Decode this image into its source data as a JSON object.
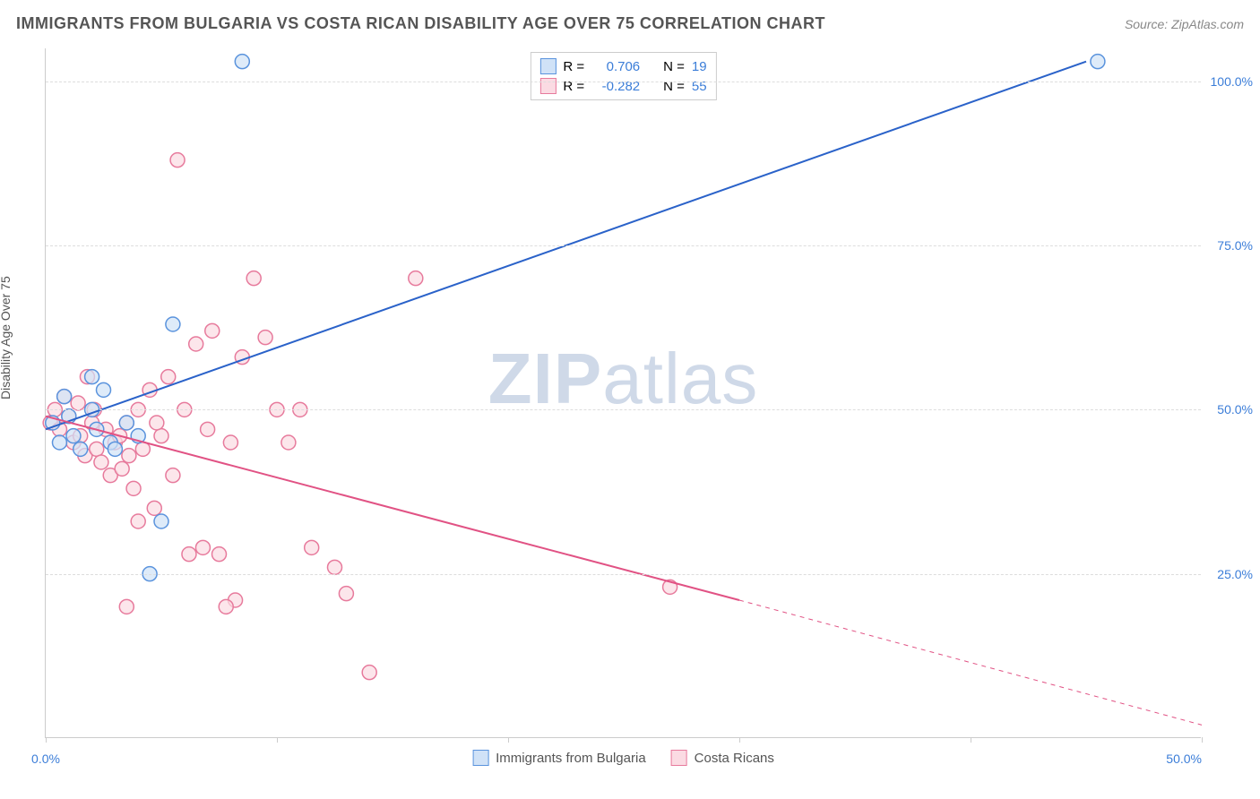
{
  "header": {
    "title": "IMMIGRANTS FROM BULGARIA VS COSTA RICAN DISABILITY AGE OVER 75 CORRELATION CHART",
    "source": "Source: ZipAtlas.com"
  },
  "watermark": {
    "zip": "ZIP",
    "atlas": "atlas"
  },
  "chart": {
    "type": "scatter-with-regression",
    "ylabel": "Disability Age Over 75",
    "background_color": "#ffffff",
    "grid_color": "#dddddd",
    "axis_color": "#cccccc",
    "xlim": [
      0,
      50
    ],
    "ylim": [
      0,
      105
    ],
    "xticks": [
      0,
      10,
      20,
      30,
      40,
      50
    ],
    "xtick_labels": [
      "0.0%",
      "",
      "",
      "",
      "",
      "50.0%"
    ],
    "yticks": [
      25,
      50,
      75,
      100
    ],
    "ytick_labels": [
      "25.0%",
      "50.0%",
      "75.0%",
      "100.0%"
    ],
    "marker_radius": 8,
    "marker_stroke_width": 1.5,
    "line_width": 2,
    "series": {
      "bulgaria": {
        "label": "Immigrants from Bulgaria",
        "fill": "#d0e2f7",
        "stroke": "#5a93dd",
        "line_color": "#2a62c9",
        "R": "0.706",
        "N": "19",
        "regression": {
          "x1": 0,
          "y1": 47,
          "x2": 45,
          "y2": 103
        },
        "points": [
          [
            0.3,
            48
          ],
          [
            0.6,
            45
          ],
          [
            0.8,
            52
          ],
          [
            1.0,
            49
          ],
          [
            1.2,
            46
          ],
          [
            1.5,
            44
          ],
          [
            2.0,
            50
          ],
          [
            2.2,
            47
          ],
          [
            2.5,
            53
          ],
          [
            2.8,
            45
          ],
          [
            3.5,
            48
          ],
          [
            4.0,
            46
          ],
          [
            4.5,
            25
          ],
          [
            5.0,
            33
          ],
          [
            5.5,
            63
          ],
          [
            2.0,
            55
          ],
          [
            8.5,
            103
          ],
          [
            45.5,
            103
          ],
          [
            3.0,
            44
          ]
        ]
      },
      "costarica": {
        "label": "Costa Ricans",
        "fill": "#fbdbe3",
        "stroke": "#e77a9c",
        "line_color": "#e15284",
        "R": "-0.282",
        "N": "55",
        "regression_solid": {
          "x1": 0,
          "y1": 49,
          "x2": 30,
          "y2": 21
        },
        "regression_dashed": {
          "x1": 30,
          "y1": 21,
          "x2": 50,
          "y2": 2
        },
        "points": [
          [
            0.2,
            48
          ],
          [
            0.4,
            50
          ],
          [
            0.6,
            47
          ],
          [
            0.8,
            52
          ],
          [
            1.0,
            49
          ],
          [
            1.2,
            45
          ],
          [
            1.4,
            51
          ],
          [
            1.5,
            46
          ],
          [
            1.7,
            43
          ],
          [
            1.8,
            55
          ],
          [
            2.0,
            48
          ],
          [
            2.1,
            50
          ],
          [
            2.2,
            44
          ],
          [
            2.4,
            42
          ],
          [
            2.6,
            47
          ],
          [
            2.8,
            40
          ],
          [
            3.0,
            45
          ],
          [
            3.2,
            46
          ],
          [
            3.3,
            41
          ],
          [
            3.5,
            48
          ],
          [
            3.6,
            43
          ],
          [
            3.8,
            38
          ],
          [
            4.0,
            50
          ],
          [
            4.2,
            44
          ],
          [
            4.5,
            53
          ],
          [
            4.7,
            35
          ],
          [
            5.0,
            46
          ],
          [
            5.3,
            55
          ],
          [
            5.5,
            40
          ],
          [
            5.7,
            88
          ],
          [
            6.0,
            50
          ],
          [
            6.2,
            28
          ],
          [
            6.5,
            60
          ],
          [
            6.8,
            29
          ],
          [
            7.0,
            47
          ],
          [
            7.2,
            62
          ],
          [
            7.5,
            28
          ],
          [
            8.0,
            45
          ],
          [
            8.2,
            21
          ],
          [
            8.5,
            58
          ],
          [
            9.0,
            70
          ],
          [
            9.5,
            61
          ],
          [
            10.0,
            50
          ],
          [
            10.5,
            45
          ],
          [
            11.0,
            50
          ],
          [
            11.5,
            29
          ],
          [
            12.5,
            26
          ],
          [
            13.0,
            22
          ],
          [
            14.0,
            10
          ],
          [
            16.0,
            70
          ],
          [
            7.8,
            20
          ],
          [
            3.5,
            20
          ],
          [
            4.0,
            33
          ],
          [
            27.0,
            23
          ],
          [
            4.8,
            48
          ]
        ]
      }
    },
    "legend_top": {
      "r_label": "R =",
      "n_label": "N =",
      "value_color": "#3b7dd8",
      "text_color": "#555555"
    },
    "legend_bottom_text_color": "#555555"
  }
}
